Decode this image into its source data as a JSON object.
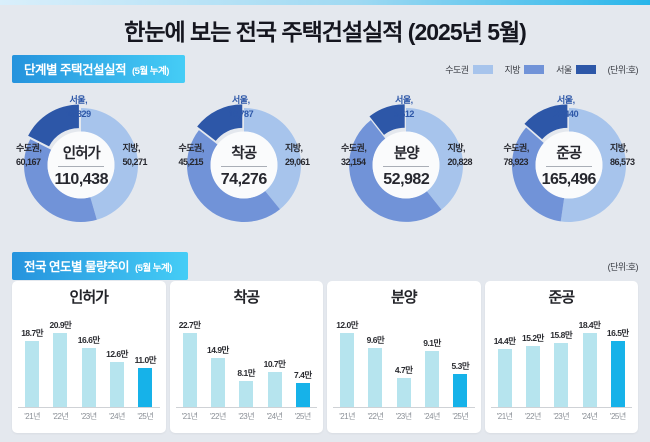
{
  "title": "한눈에 보는 전국 주택건설실적 (2025년 5월)",
  "section1": {
    "badge": "단계별 주택건설실적",
    "badge_sub": "(5월 누계)",
    "unit": "(단위:호)",
    "legend": [
      {
        "label": "수도권",
        "color": "#a7c4ec"
      },
      {
        "label": "지방",
        "color": "#7193d8"
      },
      {
        "label": "서울",
        "color": "#2d57a8"
      }
    ]
  },
  "section2": {
    "badge": "전국 연도별 물량추이",
    "badge_sub": "(5월 누계)",
    "unit": "(단위:호)"
  },
  "chart_data": {
    "donuts": {
      "type": "pie",
      "unit": "호",
      "slice_colors": [
        "#a7c4ec",
        "#7193d8",
        "#2d57a8"
      ],
      "charts": [
        {
          "name": "인허가",
          "total": 110438,
          "total_display": "110,438",
          "segments": [
            {
              "name": "수도권",
              "label": "수도권,",
              "value": 60167,
              "display": "60,167",
              "position": "left"
            },
            {
              "name": "지방",
              "label": "지방,",
              "value": 50271,
              "display": "50,271",
              "position": "right"
            },
            {
              "name": "서울",
              "label": "서울,",
              "value": 19329,
              "display": "19,329",
              "position": "top"
            }
          ]
        },
        {
          "name": "착공",
          "total": 74276,
          "total_display": "74,276",
          "segments": [
            {
              "name": "수도권",
              "label": "수도권,",
              "value": 45215,
              "display": "45,215",
              "position": "left"
            },
            {
              "name": "지방",
              "label": "지방,",
              "value": 29061,
              "display": "29,061",
              "position": "right"
            },
            {
              "name": "서울",
              "label": "서울,",
              "value": 10787,
              "display": "10,787",
              "position": "top"
            }
          ]
        },
        {
          "name": "분양",
          "total": 52982,
          "total_display": "52,982",
          "segments": [
            {
              "name": "수도권",
              "label": "수도권,",
              "value": 32154,
              "display": "32,154",
              "position": "left"
            },
            {
              "name": "지방",
              "label": "지방,",
              "value": 20828,
              "display": "20,828",
              "position": "right"
            },
            {
              "name": "서울",
              "label": "서울,",
              "value": 5612,
              "display": "5,612",
              "position": "top"
            }
          ]
        },
        {
          "name": "준공",
          "total": 165496,
          "total_display": "165,496",
          "segments": [
            {
              "name": "수도권",
              "label": "수도권,",
              "value": 78923,
              "display": "78,923",
              "position": "left"
            },
            {
              "name": "지방",
              "label": "지방,",
              "value": 86573,
              "display": "86,573",
              "position": "right"
            },
            {
              "name": "서울",
              "label": "서울,",
              "value": 22440,
              "display": "22,440",
              "position": "top"
            }
          ]
        }
      ]
    },
    "bars": {
      "type": "bar",
      "categories": [
        "'21년",
        "'22년",
        "'23년",
        "'24년",
        "'25년"
      ],
      "bar_color": "#b6e4ee",
      "highlight_color": "#16b2e9",
      "highlight_index": 4,
      "charts": [
        {
          "title": "인허가",
          "values": [
            18.7,
            20.9,
            16.6,
            12.6,
            11.0
          ],
          "value_labels": [
            "18.7만",
            "20.9만",
            "16.6만",
            "12.6만",
            "11.0만"
          ]
        },
        {
          "title": "착공",
          "values": [
            22.7,
            14.9,
            8.1,
            10.7,
            7.4
          ],
          "value_labels": [
            "22.7만",
            "14.9만",
            "8.1만",
            "10.7만",
            "7.4만"
          ]
        },
        {
          "title": "분양",
          "values": [
            12.0,
            9.6,
            4.7,
            9.1,
            5.3
          ],
          "value_labels": [
            "12.0만",
            "9.6만",
            "4.7만",
            "9.1만",
            "5.3만"
          ]
        },
        {
          "title": "준공",
          "values": [
            14.4,
            15.2,
            15.8,
            18.4,
            16.5
          ],
          "value_labels": [
            "14.4만",
            "15.2만",
            "15.8만",
            "18.4만",
            "16.5만"
          ]
        }
      ]
    }
  }
}
